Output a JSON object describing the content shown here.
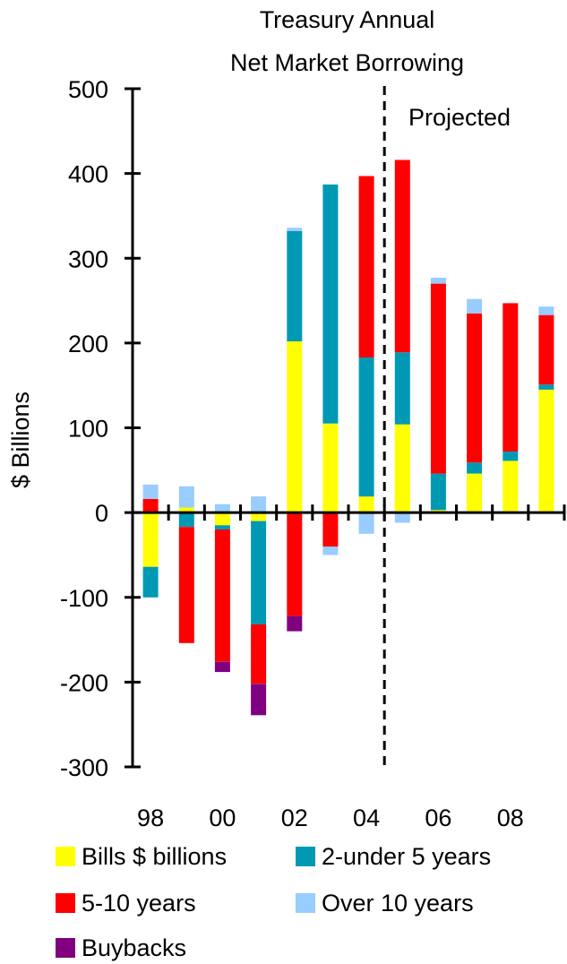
{
  "chart_data": {
    "type": "bar",
    "stacked": true,
    "title": [
      "Treasury Annual",
      "Net Market Borrowing"
    ],
    "ylabel": "$ Billions",
    "xlabel": "",
    "ylim": [
      -300,
      500
    ],
    "yticks": [
      -300,
      -200,
      -100,
      0,
      100,
      200,
      300,
      400,
      500
    ],
    "yticklabels": [
      "-300",
      "-200",
      "-100",
      "0",
      "100",
      "200",
      "300",
      "400",
      "500"
    ],
    "categories": [
      "98",
      "99",
      "00",
      "01",
      "02",
      "03",
      "04",
      "05",
      "06",
      "07",
      "08",
      "09"
    ],
    "xticklabels": [
      "98",
      "",
      "00",
      "",
      "02",
      "",
      "04",
      "",
      "06",
      "",
      "08",
      ""
    ],
    "annotation": "Projected",
    "projection_starts_after": "04",
    "grid": false,
    "legend_position": "bottom",
    "series": [
      {
        "name": "Bills $ billions",
        "color": "#ffff00",
        "values": [
          -64,
          6,
          -15,
          -10,
          202,
          105,
          19,
          104,
          3,
          46,
          61,
          145
        ]
      },
      {
        "name": "2-under 5 years",
        "color": "#0099b3",
        "values": [
          -36,
          -17,
          -5,
          -122,
          130,
          282,
          164,
          85,
          43,
          13,
          11,
          6
        ]
      },
      {
        "name": "5-10 years",
        "color": "#ff0000",
        "values": [
          16,
          -137,
          -156,
          -70,
          -122,
          -40,
          214,
          227,
          224,
          176,
          175,
          82
        ]
      },
      {
        "name": "Over 10 years",
        "color": "#99ccff",
        "values": [
          17,
          25,
          10,
          19,
          4,
          -10,
          -25,
          -12,
          7,
          17,
          0,
          10
        ]
      },
      {
        "name": "Buybacks",
        "color": "#800080",
        "values": [
          0,
          0,
          -12,
          -37,
          -18,
          0,
          0,
          0,
          0,
          0,
          0,
          0
        ]
      }
    ]
  }
}
